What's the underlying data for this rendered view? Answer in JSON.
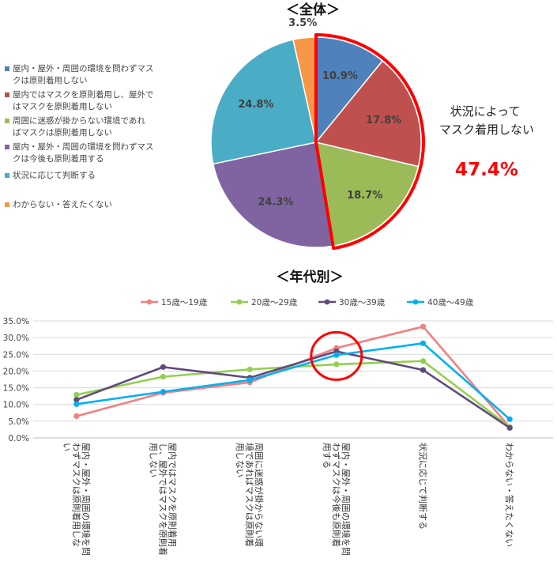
{
  "pie_title": "＜全体＞",
  "line_title": "＜年代別＞",
  "callout": {
    "label_line1": "状況によって",
    "label_line2": "マスク着用しない",
    "value": "47.4%",
    "color": "#ff0000"
  },
  "chart_data": [
    {
      "type": "pie",
      "title": "＜全体＞",
      "slices": [
        {
          "label": "屋内・屋外・周囲の環境を問わずマスクは原則着用しない",
          "value": 10.9,
          "value_label": "10.9%",
          "color": "#4f81bd"
        },
        {
          "label": "屋内ではマスクを原則着用し、屋外ではマスクを原則着用しない",
          "value": 17.8,
          "value_label": "17.8%",
          "color": "#c0504d"
        },
        {
          "label": "周囲に迷惑が掛からない環境であればマスクは原則着用しない",
          "value": 18.7,
          "value_label": "18.7%",
          "color": "#9bbb59"
        },
        {
          "label": "屋内・屋外・周囲の環境を問わずマスクは今後も原則着用する",
          "value": 24.3,
          "value_label": "24.3%",
          "color": "#8064a2"
        },
        {
          "label": "状況に応じて判断する",
          "value": 24.8,
          "value_label": "24.8%",
          "color": "#4bacc6"
        },
        {
          "label": "わからない・答えたくない",
          "value": 3.5,
          "value_label": "3.5%",
          "color": "#f79646"
        }
      ],
      "legend_lines": [
        [
          "屋内・屋外・周囲の環境を問わずマス",
          "クは原則着用しない"
        ],
        [
          "屋内ではマスクを原則着用し、屋外で",
          "はマスクを原則着用しない"
        ],
        [
          "周囲に迷惑が掛からない環境であれ",
          "ばマスクは原則着用しない"
        ],
        [
          "屋内・屋外・周囲の環境を問わずマス",
          "クは今後も原則着用する"
        ],
        [
          "状況に応じて判断する"
        ],
        [
          "わからない・答えたくない"
        ]
      ]
    },
    {
      "type": "line",
      "title": "＜年代別＞",
      "categories": [
        "屋内・屋外・周囲の環境を問わずマスクは原則着用しない",
        "屋内ではマスクを原則着用し、屋外ではマスクを原則着用しない",
        "周囲に迷惑が掛からない環境であればマスクは原則着用しない",
        "屋内・屋外・周囲の環境を問わずマスクは今後も原則着用する",
        "状況に応じて判断する",
        "わからない・答えたくない"
      ],
      "category_lines": [
        [
          "屋内・屋外・周囲の環境を問",
          "わずマスクは原則着用しな",
          "い"
        ],
        [
          "屋内ではマスクを原則着用",
          "し、屋外ではマスクを原則着",
          "用しない"
        ],
        [
          "周囲に迷惑が掛からない環",
          "境であればマスクは原則着",
          "用しない"
        ],
        [
          "屋内・屋外・周囲の環境を問",
          "わずマスクは今後も原則着",
          "用する"
        ],
        [
          "状況に応じて判断する"
        ],
        [
          "わからない・答えたくない"
        ]
      ],
      "series": [
        {
          "name": "15歳〜19歳",
          "color": "#f28080",
          "values": [
            6.5,
            13.5,
            16.6,
            26.9,
            33.3,
            3.2
          ]
        },
        {
          "name": "20歳〜29歳",
          "color": "#92d050",
          "values": [
            12.9,
            18.3,
            20.5,
            22.0,
            23.0,
            3.3
          ]
        },
        {
          "name": "30歳〜39歳",
          "color": "#604a7b",
          "values": [
            11.4,
            21.2,
            18.0,
            25.9,
            20.3,
            3.0
          ]
        },
        {
          "name": "40歳〜49歳",
          "color": "#00b0f0",
          "values": [
            10.1,
            13.8,
            17.3,
            24.8,
            28.3,
            5.6
          ]
        }
      ],
      "ylim": [
        0,
        35
      ],
      "yticks": [
        "0.0%",
        "5.0%",
        "10.0%",
        "15.0%",
        "20.0%",
        "25.0%",
        "30.0%",
        "35.0%"
      ],
      "grid": true,
      "legend_position": "top",
      "highlight": "category 4 circled in red"
    }
  ]
}
